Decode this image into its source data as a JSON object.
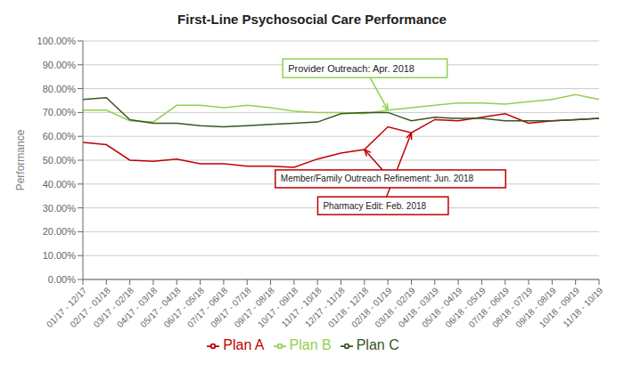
{
  "chart_data": {
    "type": "line",
    "title": "First-Line Psychosocial Care Performance",
    "y_label": "Performance",
    "categories": [
      "01/17 - 12/17",
      "02/17 - 01/18",
      "03/17 - 02/18",
      "04/17 - 03/18",
      "05/17 - 04/18",
      "06/17 - 05/18",
      "07/17 - 06/18",
      "08/17 - 07/18",
      "09/17 - 08/18",
      "10/17 - 09/18",
      "11/17 - 10/18",
      "12/17 - 11/18",
      "01/18 - 12/18",
      "02/18 - 01/19",
      "03/18 - 02/19",
      "04/18 - 03/19",
      "05/18 - 04/19",
      "06/18 - 05/19",
      "07/18 - 06/19",
      "08/18 - 07/19",
      "09/18 - 08/19",
      "10/18 - 09/19",
      "11/18 - 10/19"
    ],
    "series": [
      {
        "name": "Plan A",
        "color": "#c00000",
        "values": [
          0.575,
          0.565,
          0.5,
          0.495,
          0.505,
          0.485,
          0.485,
          0.475,
          0.475,
          0.47,
          0.505,
          0.53,
          0.545,
          0.64,
          0.615,
          0.67,
          0.665,
          0.68,
          0.695,
          0.655,
          0.665,
          0.67,
          0.675
        ]
      },
      {
        "name": "Plan B",
        "color": "#92d050",
        "values": [
          0.71,
          0.71,
          0.665,
          0.66,
          0.73,
          0.73,
          0.72,
          0.73,
          0.72,
          0.705,
          0.7,
          0.7,
          0.695,
          0.71,
          0.72,
          0.73,
          0.74,
          0.74,
          0.735,
          0.745,
          0.755,
          0.775,
          0.755
        ]
      },
      {
        "name": "Plan C",
        "color": "#375623",
        "values": [
          0.755,
          0.762,
          0.67,
          0.655,
          0.655,
          0.645,
          0.64,
          0.645,
          0.65,
          0.655,
          0.66,
          0.695,
          0.7,
          0.7,
          0.665,
          0.68,
          0.675,
          0.675,
          0.665,
          0.665,
          0.665,
          0.67,
          0.675
        ]
      }
    ],
    "ylim": [
      0.0,
      1.0
    ],
    "yticks": [
      {
        "value": 0.0,
        "label": "0.00%"
      },
      {
        "value": 0.1,
        "label": "10.00%"
      },
      {
        "value": 0.2,
        "label": "20.00%"
      },
      {
        "value": 0.3,
        "label": "30.00%"
      },
      {
        "value": 0.4,
        "label": "40.00%"
      },
      {
        "value": 0.5,
        "label": "50.00%"
      },
      {
        "value": 0.6,
        "label": "60.00%"
      },
      {
        "value": 0.7,
        "label": "70.00%"
      },
      {
        "value": 0.8,
        "label": "80.00%"
      },
      {
        "value": 0.9,
        "label": "90.00%"
      },
      {
        "value": 1.0,
        "label": "100.00%"
      }
    ],
    "grid": true,
    "annotations": [
      {
        "text": "Provider Outreach: Apr. 2018",
        "series": "Plan B",
        "category": "02/18 - 01/19"
      },
      {
        "text": "Member/Family Outreach Refinement: Jun. 2018",
        "series": "Plan A",
        "category": "01/18 - 12/18"
      },
      {
        "text": "Pharmacy Edit: Feb. 2018",
        "series": "Plan A",
        "category": "03/18 - 02/19"
      }
    ]
  }
}
